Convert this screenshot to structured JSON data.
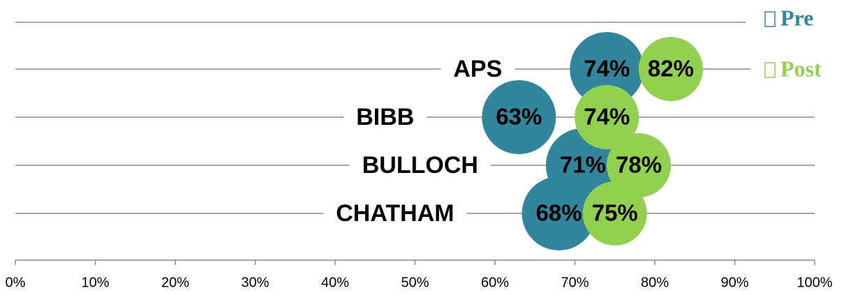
{
  "chart_data": {
    "type": "bubble",
    "categories": [
      "APS",
      "BIBB",
      "BULLOCH",
      "CHATHAM"
    ],
    "series": [
      {
        "name": "Pre",
        "color": "#31859c",
        "values": [
          74,
          63,
          71,
          68
        ],
        "value_labels": [
          "74%",
          "63%",
          "71%",
          "68%"
        ]
      },
      {
        "name": "Post",
        "color": "#92d050",
        "values": [
          82,
          74,
          78,
          75
        ],
        "value_labels": [
          "82%",
          "74%",
          "78%",
          "75%"
        ]
      }
    ],
    "xlim": [
      0,
      100
    ],
    "xticks": [
      {
        "value": 0,
        "label": "0%"
      },
      {
        "value": 10,
        "label": "10%"
      },
      {
        "value": 20,
        "label": "20%"
      },
      {
        "value": 30,
        "label": "30%"
      },
      {
        "value": 40,
        "label": "40%"
      },
      {
        "value": 50,
        "label": "50%"
      },
      {
        "value": 60,
        "label": "60%"
      },
      {
        "value": 70,
        "label": "70%"
      },
      {
        "value": 80,
        "label": "80%"
      },
      {
        "value": 90,
        "label": "90%"
      },
      {
        "value": 100,
        "label": "100%"
      }
    ],
    "grid": true,
    "legend": "top-right"
  }
}
